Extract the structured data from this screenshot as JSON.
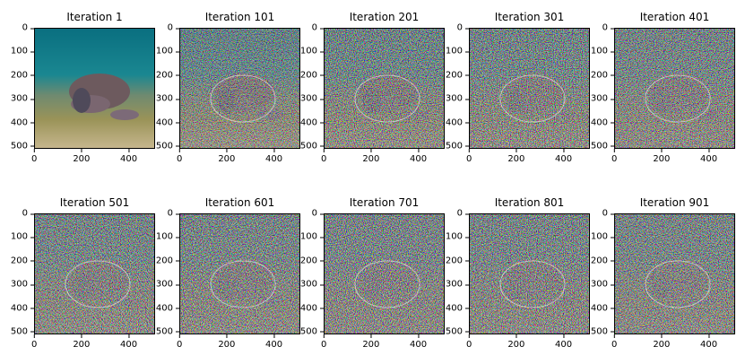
{
  "chart_data": {
    "type": "image-grid",
    "layout": {
      "rows": 2,
      "cols": 5
    },
    "image_size": [
      512,
      512
    ],
    "xticks": [
      0,
      200,
      400
    ],
    "yticks": [
      0,
      100,
      200,
      300,
      400,
      500
    ],
    "subplots": [
      {
        "title": "Iteration 1",
        "noise": 0.0
      },
      {
        "title": "Iteration 101",
        "noise": 0.75
      },
      {
        "title": "Iteration 201",
        "noise": 0.82
      },
      {
        "title": "Iteration 301",
        "noise": 0.85
      },
      {
        "title": "Iteration 401",
        "noise": 0.87
      },
      {
        "title": "Iteration 501",
        "noise": 0.88
      },
      {
        "title": "Iteration 601",
        "noise": 0.89
      },
      {
        "title": "Iteration 701",
        "noise": 0.9
      },
      {
        "title": "Iteration 801",
        "noise": 0.9
      },
      {
        "title": "Iteration 901",
        "noise": 0.9
      }
    ]
  }
}
